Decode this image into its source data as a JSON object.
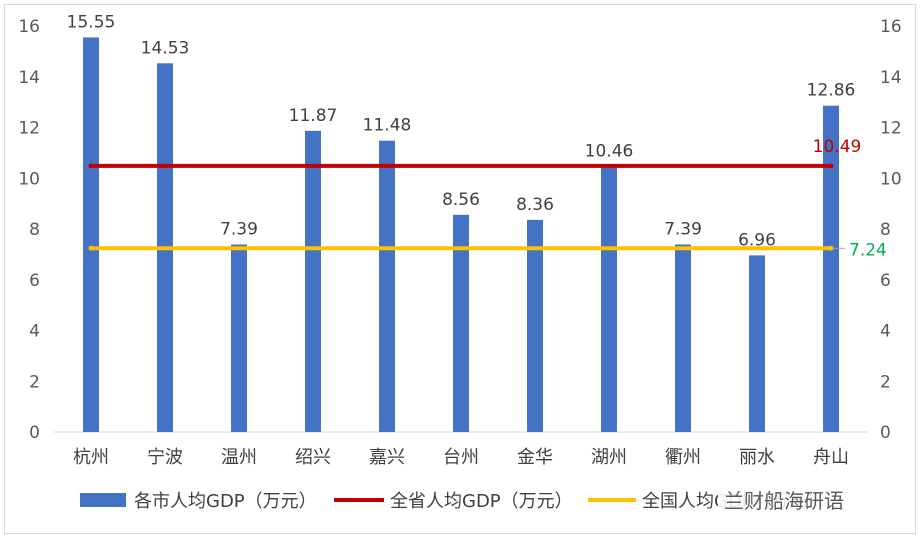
{
  "chart_data": {
    "type": "bar",
    "categories": [
      "杭州",
      "宁波",
      "温州",
      "绍兴",
      "嘉兴",
      "台州",
      "金华",
      "湖州",
      "衢州",
      "丽水",
      "舟山"
    ],
    "series": [
      {
        "name": "各市人均GDP（万元）",
        "kind": "bar",
        "color": "#4472c4",
        "values": [
          15.55,
          14.53,
          7.39,
          11.87,
          11.48,
          8.56,
          8.36,
          10.46,
          7.39,
          6.96,
          12.86
        ],
        "labels": [
          "15.55",
          "14.53",
          "7.39",
          "11.87",
          "11.48",
          "8.56",
          "8.36",
          "10.46",
          "7.39",
          "6.96",
          "12.86"
        ]
      },
      {
        "name": "全省人均GDP（万元）",
        "kind": "line",
        "color": "#c00000",
        "value": 10.49,
        "label": "10.49"
      },
      {
        "name": "全国人均GDP（万元）",
        "kind": "line",
        "color": "#ffc000",
        "value": 7.24,
        "label": "7.24",
        "label_color": "#00b050"
      }
    ],
    "ylim": [
      0,
      16
    ],
    "yticks": [
      "0",
      "2",
      "4",
      "6",
      "8",
      "10",
      "12",
      "14",
      "16"
    ],
    "secondary_yticks": [
      "0",
      "2",
      "4",
      "6",
      "8",
      "10",
      "12",
      "14",
      "16"
    ],
    "legend_position": "bottom",
    "grid": false
  },
  "legend_overlay_text": "兰财船海研语"
}
